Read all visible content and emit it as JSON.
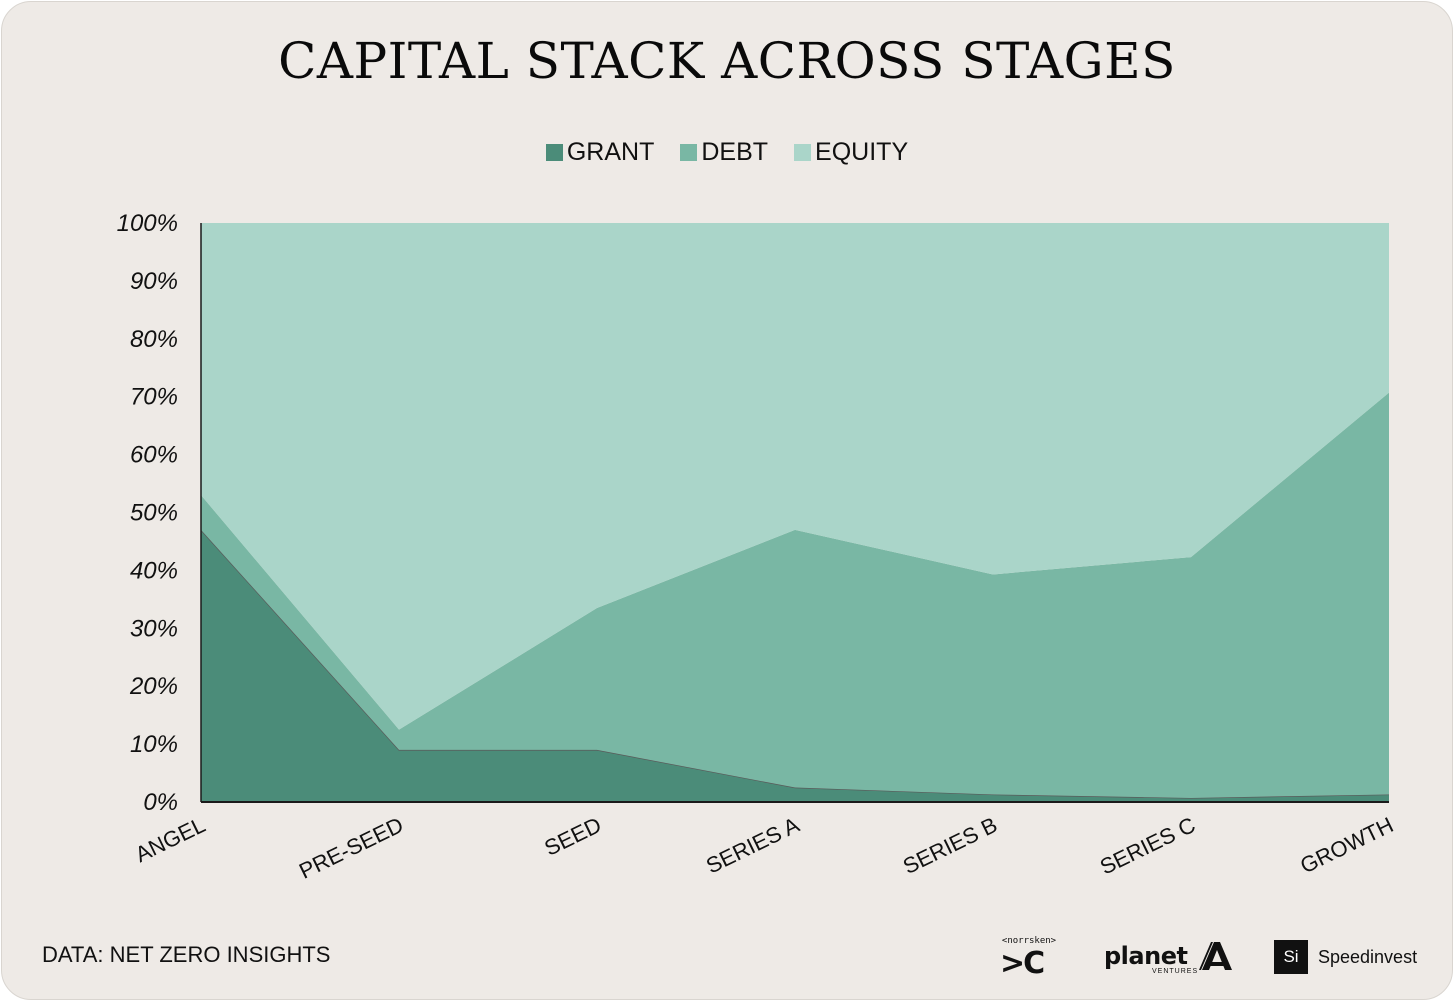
{
  "chart_data": {
    "type": "area",
    "stacked": true,
    "normalized": true,
    "title": "CAPITAL STACK ACROSS STAGES",
    "categories": [
      "ANGEL",
      "PRE-SEED",
      "SEED",
      "SERIES A",
      "SERIES B",
      "SERIES C",
      "GROWTH"
    ],
    "series": [
      {
        "name": "GRANT",
        "values": [
          47,
          9,
          9,
          2.5,
          1.3,
          0.7,
          1.3
        ],
        "color": "#4b8c79"
      },
      {
        "name": "DEBT",
        "values": [
          6,
          3.5,
          24.5,
          44.5,
          38,
          41.6,
          69.4
        ],
        "color": "#79b7a4"
      },
      {
        "name": "EQUITY",
        "values": [
          47,
          87.5,
          66.5,
          53,
          60.7,
          57.7,
          29.3
        ],
        "color": "#aad5c9"
      }
    ],
    "yticks": [
      "0%",
      "10%",
      "20%",
      "30%",
      "40%",
      "50%",
      "60%",
      "70%",
      "80%",
      "90%",
      "100%"
    ],
    "ylim": [
      0,
      100
    ],
    "grid": false,
    "legend": "top-center"
  },
  "source_note": "DATA: NET ZERO INSIGHTS",
  "logos": {
    "norrsken": {
      "small": "<norrsken>",
      "big": ">C"
    },
    "planet": {
      "word": "planet",
      "sub": "VENTURES",
      "mark": "planet-a-icon"
    },
    "speedinvest": {
      "badge": "Si",
      "word": "Speedinvest"
    }
  },
  "colors": {
    "background": "#eeeae6",
    "axis": "#1a1a1a"
  }
}
